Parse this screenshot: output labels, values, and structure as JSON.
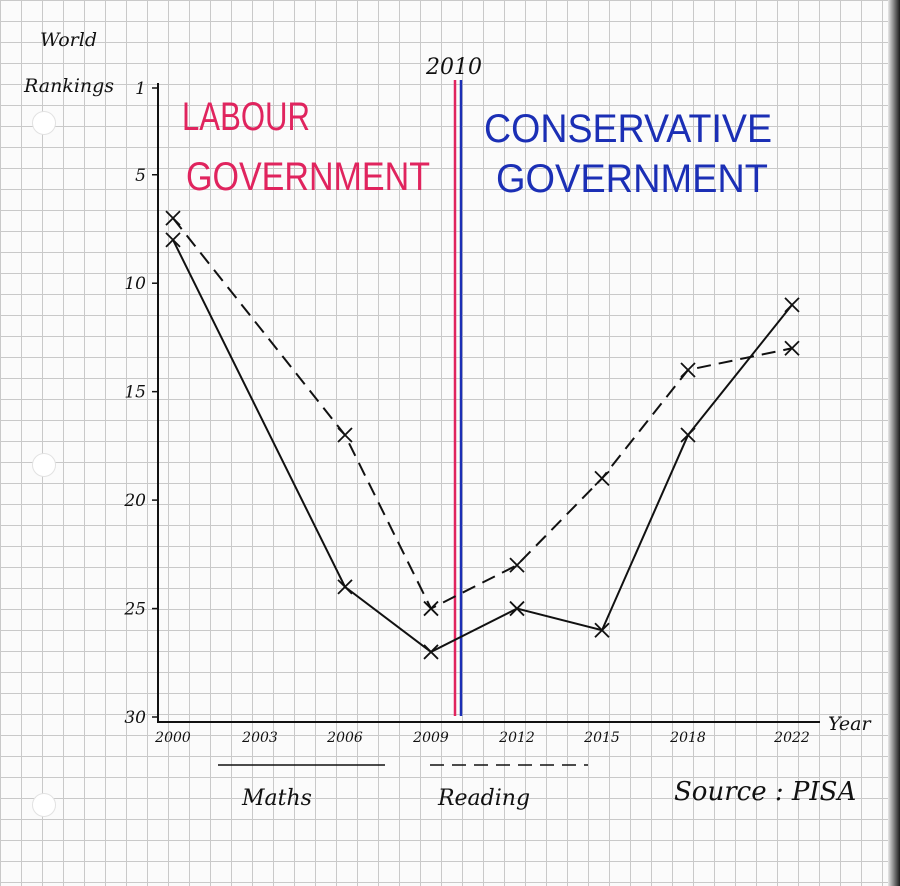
{
  "chart_data": {
    "type": "line",
    "ylabel": "World Rankings",
    "xlabel": "Year",
    "ylim": [
      1,
      30
    ],
    "y_inverted": true,
    "yticks": [
      1,
      5,
      10,
      15,
      20,
      25,
      30
    ],
    "categories": [
      "2000",
      "2003",
      "2006",
      "2009",
      "2012",
      "2015",
      "2018",
      "2022"
    ],
    "series": [
      {
        "name": "Maths",
        "style": "solid",
        "values": [
          8,
          null,
          24,
          27,
          25,
          26,
          17,
          11
        ]
      },
      {
        "name": "Reading",
        "style": "dashed",
        "values": [
          7,
          null,
          17,
          25,
          23,
          19,
          14,
          13
        ]
      }
    ],
    "divider": {
      "label": "2010",
      "colors": [
        "#e0245e",
        "#1b2fb5"
      ]
    },
    "annotations": {
      "left": {
        "lines": [
          "LABOUR",
          "GOVERNMENT"
        ],
        "color": "#e0245e"
      },
      "right": {
        "lines": [
          "CONSERVATIVE",
          "GOVERNMENT"
        ],
        "color": "#1b2fb5"
      }
    },
    "source": "Source : PISA",
    "grid": true,
    "legend": "bottom"
  }
}
